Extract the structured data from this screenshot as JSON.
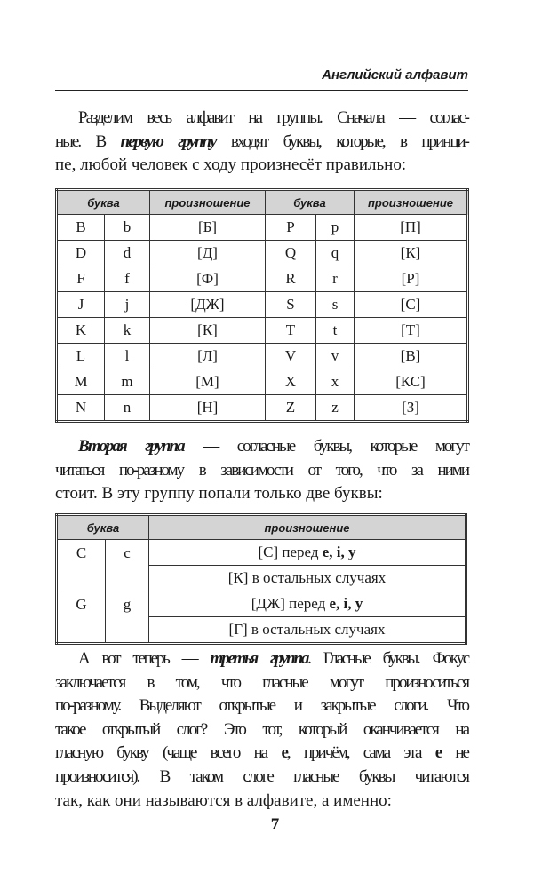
{
  "running_head": "Английский алфавит",
  "paragraphs": [
    [
      [
        {
          "t": "Разделим весь алфавит на группы. Сначала — соглас-",
          "s": ""
        }
      ],
      [
        {
          "t": "ные. В ",
          "s": ""
        },
        {
          "t": "первую группу",
          "s": "bi"
        },
        {
          "t": " входят буквы, которые, в принци-",
          "s": ""
        }
      ],
      [
        {
          "t": "пе, любой человек с ходу произнесёт правильно:",
          "s": ""
        }
      ]
    ],
    [
      [
        {
          "t": "Вторая группа",
          "s": "bi"
        },
        {
          "t": " — согласные буквы, которые могут",
          "s": ""
        }
      ],
      [
        {
          "t": "читаться по-разному в зависимости от того, что за ними",
          "s": ""
        }
      ],
      [
        {
          "t": "стоит. В эту группу попали только две буквы:",
          "s": ""
        }
      ]
    ],
    [
      [
        {
          "t": "А вот теперь — ",
          "s": ""
        },
        {
          "t": "третья группа",
          "s": "bi"
        },
        {
          "t": ". Гласные буквы. Фокус",
          "s": ""
        }
      ],
      [
        {
          "t": "заключается в том, что гласные могут произноситься",
          "s": ""
        }
      ],
      [
        {
          "t": "по-разному. Выделяют открытые и закрытые слоги. Что",
          "s": ""
        }
      ],
      [
        {
          "t": "такое открытый слог? Это тот, который оканчивается на",
          "s": ""
        }
      ],
      [
        {
          "t": "гласную букву (чаще всего на ",
          "s": ""
        },
        {
          "t": "е",
          "s": "b"
        },
        {
          "t": ", причём, сама эта ",
          "s": ""
        },
        {
          "t": "е",
          "s": "b"
        },
        {
          "t": " не",
          "s": ""
        }
      ],
      [
        {
          "t": "произносится). В таком слоге гласные буквы читаются",
          "s": ""
        }
      ],
      [
        {
          "t": "так, как они называются в алфавите, а именно:",
          "s": ""
        }
      ]
    ]
  ],
  "table1": {
    "headers": [
      "буква",
      "произношение",
      "буква",
      "произношение"
    ],
    "rows": [
      [
        "B",
        "b",
        "[Б]",
        "P",
        "p",
        "[П]"
      ],
      [
        "D",
        "d",
        "[Д]",
        "Q",
        "q",
        "[К]"
      ],
      [
        "F",
        "f",
        "[Ф]",
        "R",
        "r",
        "[Р]"
      ],
      [
        "J",
        "j",
        "[ДЖ]",
        "S",
        "s",
        "[С]"
      ],
      [
        "K",
        "k",
        "[К]",
        "T",
        "t",
        "[Т]"
      ],
      [
        "L",
        "l",
        "[Л]",
        "V",
        "v",
        "[В]"
      ],
      [
        "M",
        "m",
        "[М]",
        "X",
        "x",
        "[КС]"
      ],
      [
        "N",
        "n",
        "[Н]",
        "Z",
        "z",
        "[З]"
      ]
    ]
  },
  "table2": {
    "headers": [
      "буква",
      "произношение"
    ],
    "groups": [
      {
        "upper": "C",
        "lower": "c",
        "rules": [
          [
            {
              "t": "[С] перед ",
              "s": ""
            },
            {
              "t": "e, i, y",
              "s": "b"
            }
          ],
          [
            {
              "t": "[К] в остальных случаях",
              "s": ""
            }
          ]
        ]
      },
      {
        "upper": "G",
        "lower": "g",
        "rules": [
          [
            {
              "t": "[ДЖ] перед ",
              "s": ""
            },
            {
              "t": "e, i, y",
              "s": "b"
            }
          ],
          [
            {
              "t": "[Г] в остальных случаях",
              "s": ""
            }
          ]
        ]
      }
    ]
  },
  "page_number": "7"
}
